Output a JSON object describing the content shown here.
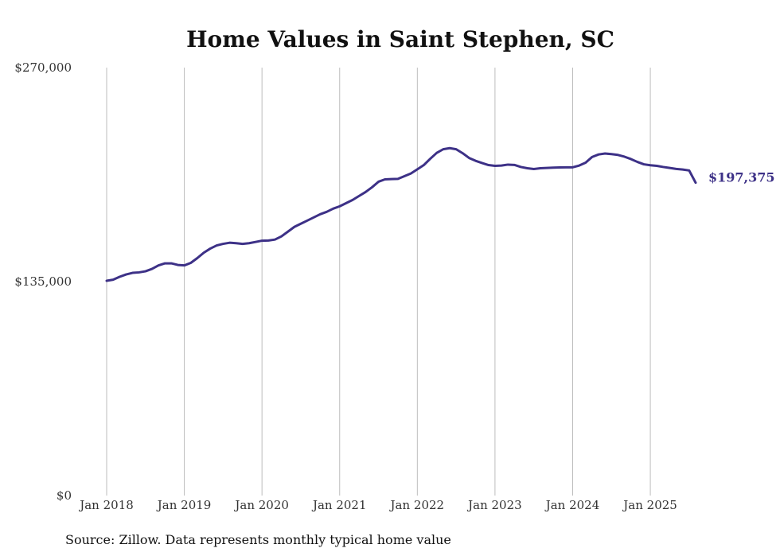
{
  "chart_data": {
    "type": "line",
    "title": "Home Values in Saint Stephen, SC",
    "xlabel": "",
    "ylabel": "",
    "ylim": [
      0,
      270000
    ],
    "xlim": [
      "2018-01",
      "2025-08"
    ],
    "grid": {
      "x": true,
      "y": false
    },
    "y_ticks": [
      {
        "value": 0,
        "label": "$0"
      },
      {
        "value": 135000,
        "label": "$135,000"
      },
      {
        "value": 270000,
        "label": "$270,000"
      }
    ],
    "x_ticks": [
      {
        "value": "2018-01",
        "label": "Jan 2018"
      },
      {
        "value": "2019-01",
        "label": "Jan 2019"
      },
      {
        "value": "2020-01",
        "label": "Jan 2020"
      },
      {
        "value": "2021-01",
        "label": "Jan 2021"
      },
      {
        "value": "2022-01",
        "label": "Jan 2022"
      },
      {
        "value": "2023-01",
        "label": "Jan 2023"
      },
      {
        "value": "2024-01",
        "label": "Jan 2024"
      },
      {
        "value": "2025-01",
        "label": "Jan 2025"
      }
    ],
    "series": [
      {
        "color": "#3d3187",
        "x": [
          "2018-01",
          "2018-02",
          "2018-03",
          "2018-04",
          "2018-05",
          "2018-06",
          "2018-07",
          "2018-08",
          "2018-09",
          "2018-10",
          "2018-11",
          "2018-12",
          "2019-01",
          "2019-02",
          "2019-03",
          "2019-04",
          "2019-05",
          "2019-06",
          "2019-07",
          "2019-08",
          "2019-09",
          "2019-10",
          "2019-11",
          "2019-12",
          "2020-01",
          "2020-02",
          "2020-03",
          "2020-04",
          "2020-05",
          "2020-06",
          "2020-07",
          "2020-08",
          "2020-09",
          "2020-10",
          "2020-11",
          "2020-12",
          "2021-01",
          "2021-02",
          "2021-03",
          "2021-04",
          "2021-05",
          "2021-06",
          "2021-07",
          "2021-08",
          "2021-09",
          "2021-10",
          "2021-11",
          "2021-12",
          "2022-01",
          "2022-02",
          "2022-03",
          "2022-04",
          "2022-05",
          "2022-06",
          "2022-07",
          "2022-08",
          "2022-09",
          "2022-10",
          "2022-11",
          "2022-12",
          "2023-01",
          "2023-02",
          "2023-03",
          "2023-04",
          "2023-05",
          "2023-06",
          "2023-07",
          "2023-08",
          "2023-09",
          "2023-10",
          "2023-11",
          "2023-12",
          "2024-01",
          "2024-02",
          "2024-03",
          "2024-04",
          "2024-05",
          "2024-06",
          "2024-07",
          "2024-08",
          "2024-09",
          "2024-10",
          "2024-11",
          "2024-12",
          "2025-01",
          "2025-02",
          "2025-03",
          "2025-04",
          "2025-05",
          "2025-06",
          "2025-07",
          "2025-08"
        ],
        "values": [
          135500,
          136200,
          138000,
          139500,
          140500,
          140800,
          141500,
          143000,
          145200,
          146500,
          146500,
          145500,
          145200,
          146800,
          149800,
          153200,
          155800,
          157800,
          158800,
          159500,
          159200,
          158800,
          159200,
          160000,
          160800,
          160900,
          161500,
          163500,
          166500,
          169500,
          171500,
          173500,
          175500,
          177500,
          179000,
          181000,
          182500,
          184500,
          186500,
          189000,
          191500,
          194500,
          198000,
          199500,
          199700,
          199800,
          201500,
          203200,
          205800,
          208500,
          212500,
          216200,
          218500,
          219200,
          218500,
          216000,
          213000,
          211200,
          209800,
          208500,
          208000,
          208200,
          208800,
          208600,
          207300,
          206500,
          206000,
          206500,
          206700,
          206900,
          207000,
          207100,
          207100,
          208200,
          210000,
          213600,
          215200,
          215800,
          215400,
          214900,
          213800,
          212300,
          210500,
          209000,
          208400,
          208000,
          207300,
          206700,
          206100,
          205700,
          205100,
          197375
        ],
        "end_label": "$197,375"
      }
    ],
    "source": "Source: Zillow. Data represents monthly typical home value"
  }
}
